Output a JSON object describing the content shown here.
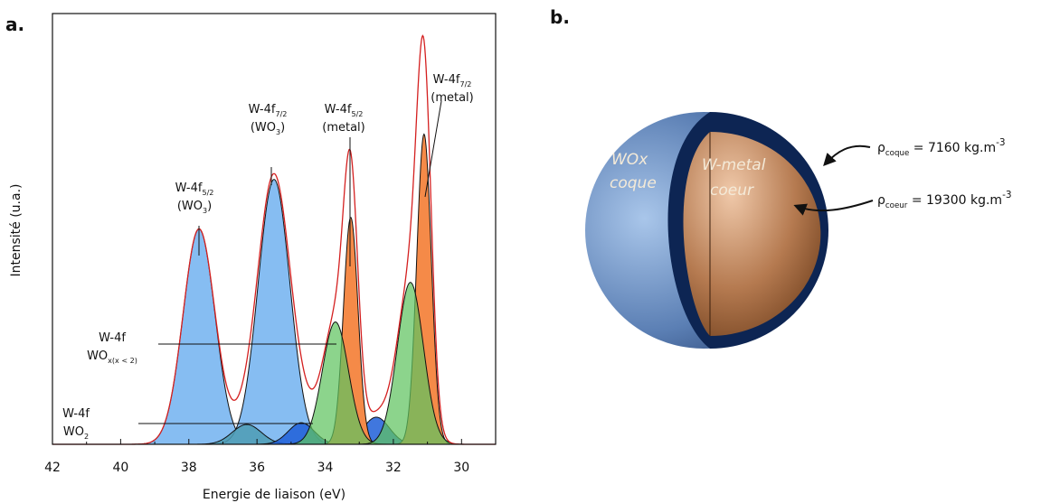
{
  "chart_data": {
    "type": "peaks",
    "panel_label": "a.",
    "x_label": "Energie de liaison (eV)",
    "y_label": "Intensité (u.a.)",
    "xlim": [
      42,
      29
    ],
    "xticks": [
      42,
      40,
      38,
      36,
      34,
      32,
      30
    ],
    "ylim": [
      0,
      100
    ],
    "envelope_color": "#d42020",
    "peaks": [
      {
        "center": 37.7,
        "height": 50,
        "fwhm": 1.1,
        "color": "#86bdf2"
      },
      {
        "center": 35.5,
        "height": 61.5,
        "fwhm": 1.1,
        "color": "#86bdf2"
      },
      {
        "center": 36.3,
        "height": 4.6,
        "fwhm": 1.0,
        "color": "#4d9cb4"
      },
      {
        "center": 34.7,
        "height": 5,
        "fwhm": 0.9,
        "color": "#1f5fd8"
      },
      {
        "center": 32.5,
        "height": 6.3,
        "fwhm": 0.9,
        "color": "#1f5fd8"
      },
      {
        "center": 33.25,
        "height": 52.7,
        "fwhm": 0.5,
        "color": "#f58a48"
      },
      {
        "center": 31.1,
        "height": 72,
        "fwhm": 0.5,
        "color": "#f58a48"
      },
      {
        "center": 33.7,
        "height": 28.4,
        "fwhm": 0.9,
        "color": "#5fc460"
      },
      {
        "center": 31.5,
        "height": 37.6,
        "fwhm": 0.9,
        "color": "#5fc460"
      }
    ],
    "annotations": [
      {
        "lines": [
          [
            {
              "t": "W-4f"
            },
            {
              "t": "5/2",
              "sub": true
            }
          ],
          [
            {
              "t": "(WO"
            },
            {
              "t": "3",
              "sub": true
            },
            {
              "t": ")"
            }
          ]
        ]
      },
      {
        "lines": [
          [
            {
              "t": "W-4f"
            },
            {
              "t": "7/2",
              "sub": true
            }
          ],
          [
            {
              "t": "(WO"
            },
            {
              "t": "3",
              "sub": true
            },
            {
              "t": ")"
            }
          ]
        ]
      },
      {
        "lines": [
          [
            {
              "t": "W-4f"
            },
            {
              "t": "5/2",
              "sub": true
            }
          ],
          [
            {
              "t": "(metal)"
            }
          ]
        ]
      },
      {
        "lines": [
          [
            {
              "t": "W-4f"
            },
            {
              "t": "7/2",
              "sub": true
            }
          ],
          [
            {
              "t": "(metal)"
            }
          ]
        ]
      },
      {
        "lines": [
          [
            {
              "t": "W-4f"
            }
          ],
          [
            {
              "t": "WO"
            },
            {
              "t": "x(x < 2)",
              "sub": true
            }
          ]
        ]
      },
      {
        "lines": [
          [
            {
              "t": "W-4f"
            }
          ],
          [
            {
              "t": "WO"
            },
            {
              "t": "2",
              "sub": true
            }
          ]
        ]
      }
    ]
  },
  "diagram": {
    "panel_label": "b.",
    "shell_label": [
      "WOx",
      "coque"
    ],
    "core_label": [
      "W-metal",
      "coeur"
    ],
    "densities": [
      [
        {
          "t": "ρ"
        },
        {
          "t": "coque",
          "sub": true
        },
        {
          "t": " = 7160 kg.m"
        },
        {
          "t": "-3",
          "sup": true
        }
      ],
      [
        {
          "t": "ρ"
        },
        {
          "t": "coeur",
          "sub": true
        },
        {
          "t": " = 19300 kg.m"
        },
        {
          "t": "-3",
          "sup": true
        }
      ]
    ]
  }
}
